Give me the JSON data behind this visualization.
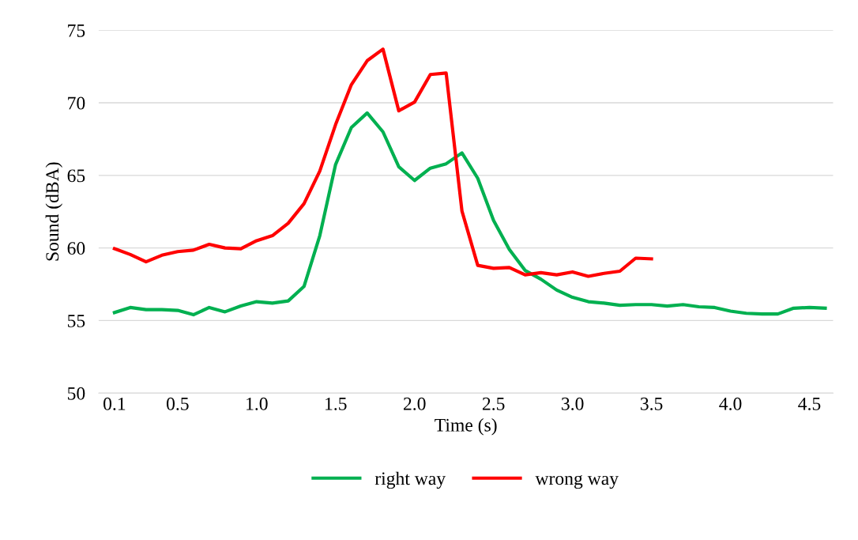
{
  "chart_data": {
    "type": "line",
    "xlabel": "Time (s)",
    "ylabel": "Sound (dBA)",
    "xlim": [
      0.0,
      4.65
    ],
    "xticks": [
      {
        "value": 0.1,
        "label": "0.1"
      },
      {
        "value": 0.5,
        "label": "0.5"
      },
      {
        "value": 1.0,
        "label": "1.0"
      },
      {
        "value": 1.5,
        "label": "1.5"
      },
      {
        "value": 2.0,
        "label": "2.0"
      },
      {
        "value": 2.5,
        "label": "2.5"
      },
      {
        "value": 3.0,
        "label": "3.0"
      },
      {
        "value": 3.5,
        "label": "3.5"
      },
      {
        "value": 4.0,
        "label": "4.0"
      },
      {
        "value": 4.5,
        "label": "4.5"
      }
    ],
    "ylim": [
      50,
      75
    ],
    "yticks": [
      50,
      55,
      60,
      65,
      70,
      75
    ],
    "grid": "y",
    "legend": "bottom",
    "marker": "none",
    "line_style": "solid",
    "series": [
      {
        "name": "right way",
        "color": "#00b050",
        "x": [
          0.1,
          0.2,
          0.3,
          0.4,
          0.5,
          0.6,
          0.7,
          0.8,
          0.9,
          1.0,
          1.1,
          1.2,
          1.3,
          1.4,
          1.5,
          1.6,
          1.7,
          1.8,
          1.9,
          2.0,
          2.1,
          2.2,
          2.3,
          2.4,
          2.5,
          2.6,
          2.7,
          2.8,
          2.9,
          3.0,
          3.1,
          3.2,
          3.3,
          3.4,
          3.5,
          3.6,
          3.7,
          3.8,
          3.9,
          4.0,
          4.1,
          4.2,
          4.3,
          4.4,
          4.5,
          4.6
        ],
        "values": [
          55.55,
          55.9,
          55.75,
          55.75,
          55.7,
          55.4,
          55.9,
          55.6,
          56.0,
          56.3,
          56.2,
          56.35,
          57.35,
          60.85,
          65.75,
          68.3,
          69.3,
          68.0,
          65.6,
          64.65,
          65.5,
          65.8,
          66.55,
          64.8,
          61.9,
          59.9,
          58.45,
          57.85,
          57.1,
          56.6,
          56.3,
          56.2,
          56.05,
          56.1,
          56.1,
          56.0,
          56.1,
          55.95,
          55.9,
          55.65,
          55.5,
          55.45,
          55.45,
          55.85,
          55.9,
          55.85
        ]
      },
      {
        "name": "wrong way",
        "color": "#ff0000",
        "x": [
          0.1,
          0.2,
          0.3,
          0.4,
          0.5,
          0.6,
          0.7,
          0.8,
          0.9,
          1.0,
          1.1,
          1.2,
          1.3,
          1.4,
          1.5,
          1.6,
          1.7,
          1.8,
          1.9,
          2.0,
          2.1,
          2.2,
          2.3,
          2.4,
          2.5,
          2.6,
          2.7,
          2.8,
          2.9,
          3.0,
          3.1,
          3.2,
          3.3,
          3.4,
          3.5
        ],
        "values": [
          59.95,
          59.55,
          59.05,
          59.5,
          59.75,
          59.85,
          60.25,
          60.0,
          59.95,
          60.5,
          60.85,
          61.7,
          63.05,
          65.3,
          68.5,
          71.25,
          72.9,
          73.7,
          69.45,
          70.05,
          71.95,
          72.05,
          62.55,
          58.8,
          58.6,
          58.65,
          58.15,
          58.3,
          58.15,
          58.35,
          58.05,
          58.25,
          58.4,
          59.3,
          59.25
        ]
      }
    ]
  }
}
